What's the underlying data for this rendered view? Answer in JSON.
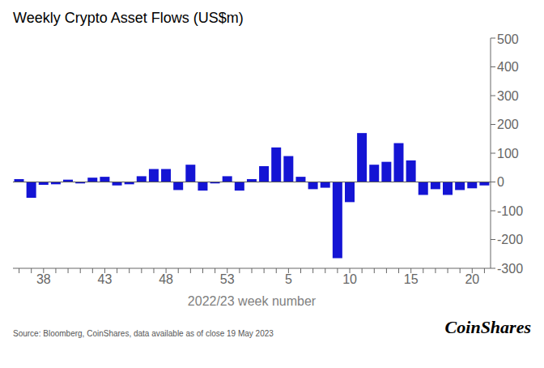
{
  "chart_data": {
    "type": "bar",
    "title": "Weekly Crypto Asset Flows (US$m)",
    "x_label": "2022/23 week number",
    "annotations": [
      "Source: Bloomberg, CoinShares, data available as of close 19 May 2023",
      "CoinShares"
    ],
    "categories": [
      null,
      null,
      "38",
      null,
      null,
      null,
      null,
      "43",
      null,
      null,
      null,
      null,
      "48",
      null,
      null,
      null,
      null,
      "53",
      null,
      null,
      null,
      null,
      "5",
      null,
      null,
      null,
      null,
      "10",
      null,
      null,
      null,
      null,
      "15",
      null,
      null,
      null,
      null,
      "20",
      null
    ],
    "values": [
      10,
      -55,
      -10,
      -8,
      8,
      -5,
      15,
      18,
      -12,
      -8,
      20,
      45,
      45,
      -28,
      60,
      -30,
      -5,
      20,
      -30,
      10,
      55,
      120,
      90,
      18,
      -25,
      -20,
      -265,
      -70,
      170,
      60,
      70,
      135,
      75,
      -45,
      -25,
      -45,
      -28,
      -22,
      -12
    ],
    "color": "#1414d4",
    "ylim": [
      -300,
      500
    ],
    "yticks": [
      -300,
      -200,
      -100,
      0,
      100,
      200,
      300,
      400,
      500
    ],
    "grid": false
  }
}
